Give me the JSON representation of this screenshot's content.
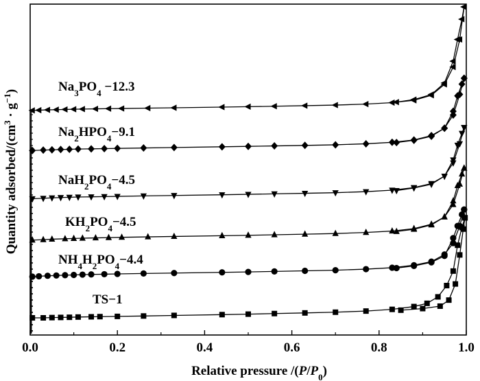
{
  "chart_data": {
    "type": "line",
    "xlabel_parts": [
      "Relative pressure /(",
      "P",
      "/",
      "P",
      "0",
      ")"
    ],
    "ylabel_parts": [
      "Quantity adsorbed/(cm",
      "3",
      " · g",
      "−1",
      ")"
    ],
    "xlim": [
      0.0,
      1.0
    ],
    "x_ticks": [
      "0.0",
      "0.2",
      "0.4",
      "0.6",
      "0.8",
      "1.0"
    ],
    "y_ticks_labeled": false,
    "grid": false,
    "legend": "inline labels above each curve",
    "series": [
      {
        "name": "TS−1",
        "label_parts": [
          {
            "t": "TS−1"
          }
        ],
        "marker": "square",
        "adsorption": [
          [
            0.005,
            0.0
          ],
          [
            0.03,
            0.0
          ],
          [
            0.05,
            0.3
          ],
          [
            0.07,
            0.5
          ],
          [
            0.09,
            0.7
          ],
          [
            0.11,
            1.0
          ],
          [
            0.14,
            1.3
          ],
          [
            0.16,
            1.5
          ],
          [
            0.2,
            1.8
          ],
          [
            0.26,
            2.3
          ],
          [
            0.33,
            3.0
          ],
          [
            0.44,
            4.0
          ],
          [
            0.5,
            4.6
          ],
          [
            0.56,
            5.3
          ],
          [
            0.63,
            6.1
          ],
          [
            0.7,
            7.0
          ],
          [
            0.77,
            8.4
          ],
          [
            0.83,
            10.5
          ],
          [
            0.88,
            14.0
          ],
          [
            0.91,
            18.0
          ],
          [
            0.935,
            26.0
          ],
          [
            0.955,
            40.0
          ],
          [
            0.97,
            58.0
          ],
          [
            0.98,
            90.0
          ],
          [
            0.99,
            112.0
          ],
          [
            0.997,
            124.0
          ]
        ],
        "desorption": [
          [
            0.997,
            124.0
          ],
          [
            0.993,
            110.0
          ],
          [
            0.985,
            78.0
          ],
          [
            0.975,
            42.0
          ],
          [
            0.96,
            22.0
          ],
          [
            0.94,
            14.5
          ],
          [
            0.9,
            11.5
          ],
          [
            0.85,
            9.5
          ]
        ]
      },
      {
        "name": "NH₄H₂PO₄−4.4",
        "label_parts": [
          {
            "t": "NH"
          },
          {
            "t": "4",
            "sub": true
          },
          {
            "t": "H"
          },
          {
            "t": "2",
            "sub": true
          },
          {
            "t": "PO"
          },
          {
            "t": "4",
            "sub": true
          },
          {
            "t": "−4.4"
          }
        ],
        "marker": "circle",
        "adsorption": [
          [
            0.005,
            1.0
          ],
          [
            0.02,
            1.5
          ],
          [
            0.04,
            2.2
          ],
          [
            0.06,
            2.6
          ],
          [
            0.08,
            3.0
          ],
          [
            0.1,
            3.4
          ],
          [
            0.12,
            3.8
          ],
          [
            0.14,
            4.1
          ],
          [
            0.17,
            4.4
          ],
          [
            0.2,
            4.8
          ],
          [
            0.26,
            5.4
          ],
          [
            0.33,
            6.0
          ],
          [
            0.44,
            7.0
          ],
          [
            0.5,
            7.6
          ],
          [
            0.56,
            8.3
          ],
          [
            0.63,
            9.1
          ],
          [
            0.7,
            10.0
          ],
          [
            0.77,
            11.5
          ],
          [
            0.83,
            13.5
          ],
          [
            0.88,
            17.0
          ],
          [
            0.92,
            22.0
          ],
          [
            0.95,
            32.0
          ],
          [
            0.97,
            48.0
          ],
          [
            0.985,
            72.0
          ],
          [
            0.995,
            95.0
          ]
        ],
        "desorption": [
          [
            0.995,
            95.0
          ],
          [
            0.99,
            88.0
          ],
          [
            0.98,
            72.0
          ],
          [
            0.97,
            55.0
          ],
          [
            0.95,
            30.0
          ],
          [
            0.92,
            21.0
          ],
          [
            0.88,
            16.0
          ],
          [
            0.84,
            13.0
          ]
        ]
      },
      {
        "name": "KH₂PO₄−4.5",
        "label_parts": [
          {
            "t": "KH"
          },
          {
            "t": "2",
            "sub": true
          },
          {
            "t": "PO"
          },
          {
            "t": "4",
            "sub": true
          },
          {
            "t": "−4.5"
          }
        ],
        "marker": "triangle-up",
        "adsorption": [
          [
            0.005,
            1.2
          ],
          [
            0.03,
            1.8
          ],
          [
            0.05,
            2.4
          ],
          [
            0.08,
            3.0
          ],
          [
            0.1,
            3.4
          ],
          [
            0.12,
            3.8
          ],
          [
            0.15,
            4.2
          ],
          [
            0.18,
            4.6
          ],
          [
            0.21,
            5.0
          ],
          [
            0.27,
            5.6
          ],
          [
            0.33,
            6.2
          ],
          [
            0.44,
            7.2
          ],
          [
            0.5,
            7.8
          ],
          [
            0.56,
            8.5
          ],
          [
            0.63,
            9.3
          ],
          [
            0.7,
            10.2
          ],
          [
            0.77,
            11.7
          ],
          [
            0.83,
            13.6
          ],
          [
            0.88,
            17.0
          ],
          [
            0.92,
            23.0
          ],
          [
            0.95,
            33.0
          ],
          [
            0.97,
            50.0
          ],
          [
            0.985,
            78.0
          ],
          [
            0.995,
            100.0
          ]
        ],
        "desorption": [
          [
            0.995,
            100.0
          ],
          [
            0.99,
            92.0
          ],
          [
            0.98,
            76.0
          ],
          [
            0.97,
            55.0
          ],
          [
            0.95,
            33.0
          ],
          [
            0.92,
            22.0
          ],
          [
            0.88,
            16.0
          ],
          [
            0.84,
            13.0
          ]
        ]
      },
      {
        "name": "NaH₂PO₄−4.5",
        "label_parts": [
          {
            "t": "NaH"
          },
          {
            "t": "2",
            "sub": true
          },
          {
            "t": "PO"
          },
          {
            "t": "4",
            "sub": true
          },
          {
            "t": "−4.5"
          }
        ],
        "marker": "triangle-down",
        "adsorption": [
          [
            0.005,
            1.4
          ],
          [
            0.03,
            2.0
          ],
          [
            0.05,
            2.6
          ],
          [
            0.07,
            3.0
          ],
          [
            0.09,
            3.4
          ],
          [
            0.11,
            3.7
          ],
          [
            0.14,
            4.0
          ],
          [
            0.17,
            4.3
          ],
          [
            0.2,
            4.6
          ],
          [
            0.26,
            5.2
          ],
          [
            0.33,
            5.8
          ],
          [
            0.44,
            6.8
          ],
          [
            0.5,
            7.4
          ],
          [
            0.56,
            8.0
          ],
          [
            0.63,
            8.8
          ],
          [
            0.7,
            9.6
          ],
          [
            0.77,
            11.0
          ],
          [
            0.83,
            13.0
          ],
          [
            0.88,
            16.5
          ],
          [
            0.92,
            22.0
          ],
          [
            0.95,
            32.0
          ],
          [
            0.97,
            50.0
          ],
          [
            0.985,
            76.0
          ],
          [
            0.995,
            98.0
          ]
        ],
        "desorption": [
          [
            0.995,
            98.0
          ],
          [
            0.99,
            90.0
          ],
          [
            0.98,
            74.0
          ],
          [
            0.97,
            54.0
          ],
          [
            0.95,
            32.0
          ],
          [
            0.92,
            21.0
          ],
          [
            0.88,
            16.0
          ],
          [
            0.84,
            12.5
          ]
        ]
      },
      {
        "name": "Na₂HPO₄−9.1",
        "label_parts": [
          {
            "t": "Na"
          },
          {
            "t": "2",
            "sub": true
          },
          {
            "t": "HPO"
          },
          {
            "t": "4",
            "sub": true
          },
          {
            "t": "−9.1"
          }
        ],
        "marker": "diamond",
        "adsorption": [
          [
            0.005,
            1.6
          ],
          [
            0.03,
            2.2
          ],
          [
            0.05,
            2.6
          ],
          [
            0.07,
            3.0
          ],
          [
            0.09,
            3.3
          ],
          [
            0.11,
            3.6
          ],
          [
            0.14,
            3.9
          ],
          [
            0.17,
            4.2
          ],
          [
            0.2,
            4.5
          ],
          [
            0.26,
            5.1
          ],
          [
            0.33,
            5.7
          ],
          [
            0.44,
            6.7
          ],
          [
            0.5,
            7.3
          ],
          [
            0.56,
            7.9
          ],
          [
            0.63,
            8.6
          ],
          [
            0.7,
            9.4
          ],
          [
            0.77,
            10.8
          ],
          [
            0.83,
            12.8
          ],
          [
            0.88,
            16.0
          ],
          [
            0.92,
            22.0
          ],
          [
            0.95,
            32.0
          ],
          [
            0.97,
            50.0
          ],
          [
            0.985,
            78.0
          ],
          [
            0.995,
            100.0
          ]
        ],
        "desorption": [
          [
            0.995,
            100.0
          ],
          [
            0.99,
            92.0
          ],
          [
            0.98,
            76.0
          ],
          [
            0.97,
            55.0
          ],
          [
            0.95,
            32.0
          ],
          [
            0.92,
            21.0
          ],
          [
            0.88,
            15.5
          ],
          [
            0.84,
            12.5
          ]
        ]
      },
      {
        "name": "Na₃PO₄−12.3",
        "label_parts": [
          {
            "t": "Na"
          },
          {
            "t": "3",
            "sub": true
          },
          {
            "t": "PO"
          },
          {
            "t": "4",
            "sub": true
          },
          {
            "t": " −12.3"
          }
        ],
        "marker": "triangle-left",
        "adsorption": [
          [
            0.005,
            2.0
          ],
          [
            0.02,
            2.4
          ],
          [
            0.04,
            2.8
          ],
          [
            0.06,
            3.1
          ],
          [
            0.08,
            3.4
          ],
          [
            0.1,
            3.7
          ],
          [
            0.12,
            3.9
          ],
          [
            0.15,
            4.2
          ],
          [
            0.18,
            4.5
          ],
          [
            0.21,
            4.7
          ],
          [
            0.27,
            5.2
          ],
          [
            0.33,
            5.7
          ],
          [
            0.44,
            6.6
          ],
          [
            0.5,
            7.2
          ],
          [
            0.56,
            7.8
          ],
          [
            0.63,
            8.6
          ],
          [
            0.7,
            9.4
          ],
          [
            0.77,
            10.8
          ],
          [
            0.83,
            12.8
          ],
          [
            0.88,
            16.0
          ],
          [
            0.92,
            23.0
          ],
          [
            0.95,
            38.0
          ],
          [
            0.97,
            62.0
          ],
          [
            0.985,
            100.0
          ],
          [
            0.995,
            145.0
          ]
        ],
        "desorption": [
          [
            0.995,
            145.0
          ],
          [
            0.99,
            128.0
          ],
          [
            0.98,
            100.0
          ],
          [
            0.97,
            70.0
          ],
          [
            0.95,
            40.0
          ],
          [
            0.92,
            24.0
          ],
          [
            0.88,
            17.0
          ],
          [
            0.84,
            13.5
          ]
        ]
      }
    ]
  }
}
